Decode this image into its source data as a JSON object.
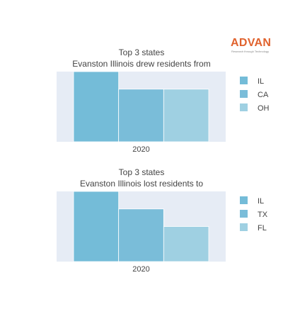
{
  "logo": {
    "word": "ADVAN",
    "tagline": "Research through Technology",
    "color": "#e0622d"
  },
  "chart_data": [
    {
      "type": "bar",
      "title_line1": "Top 3 states",
      "title_line2": "Evanston Illinois drew residents from",
      "categories": [
        "2020"
      ],
      "series": [
        {
          "name": "IL",
          "values": [
            100
          ],
          "color": "#74bcd8"
        },
        {
          "name": "CA",
          "values": [
            75
          ],
          "color": "#7abdd9"
        },
        {
          "name": "OH",
          "values": [
            75
          ],
          "color": "#9fd0e2"
        }
      ],
      "ylim": [
        0,
        100
      ],
      "ylabel": "",
      "xlabel": "",
      "legend_position": "right",
      "grid": false,
      "background": "#e6ecf5"
    },
    {
      "type": "bar",
      "title_line1": "Top 3 states",
      "title_line2": "Evanston Illinois lost residents to",
      "categories": [
        "2020"
      ],
      "series": [
        {
          "name": "IL",
          "values": [
            100
          ],
          "color": "#74bcd8"
        },
        {
          "name": "TX",
          "values": [
            75
          ],
          "color": "#7abdd9"
        },
        {
          "name": "FL",
          "values": [
            50
          ],
          "color": "#9fd0e2"
        }
      ],
      "ylim": [
        0,
        100
      ],
      "ylabel": "",
      "xlabel": "",
      "legend_position": "right",
      "grid": false,
      "background": "#e6ecf5"
    }
  ]
}
